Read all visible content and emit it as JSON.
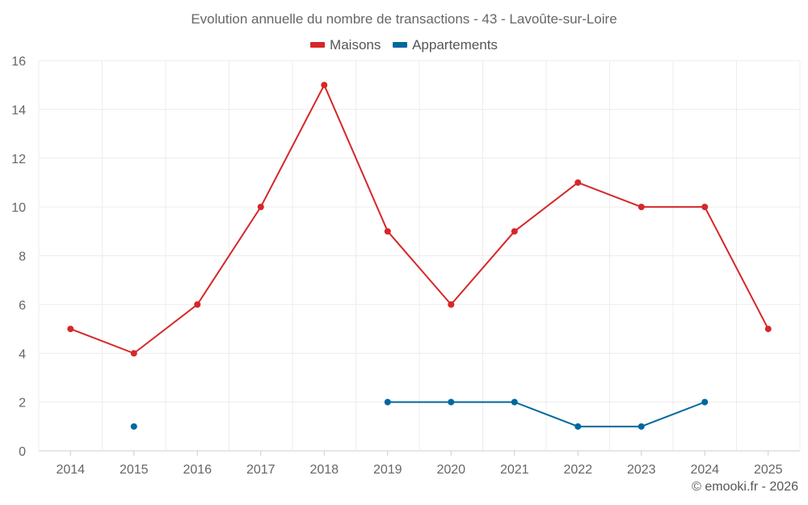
{
  "chart_data": {
    "type": "line",
    "title": "Evolution annuelle du nombre de transactions - 43 - Lavoûte-sur-Loire",
    "xlabel": "",
    "ylabel": "",
    "categories": [
      "2014",
      "2015",
      "2016",
      "2017",
      "2018",
      "2019",
      "2020",
      "2021",
      "2022",
      "2023",
      "2024",
      "2025"
    ],
    "ylim": [
      0,
      16
    ],
    "yticks": [
      0,
      2,
      4,
      6,
      8,
      10,
      12,
      14,
      16
    ],
    "grid": true,
    "legend_position": "top-center",
    "series": [
      {
        "name": "Maisons",
        "color": "#d62728",
        "values": [
          5,
          4,
          6,
          10,
          15,
          9,
          6,
          9,
          11,
          10,
          10,
          5
        ]
      },
      {
        "name": "Appartements",
        "color": "#00689d",
        "values": [
          null,
          1,
          null,
          null,
          null,
          2,
          2,
          2,
          1,
          1,
          2,
          null
        ]
      }
    ]
  },
  "credit": "© emooki.fr - 2026"
}
